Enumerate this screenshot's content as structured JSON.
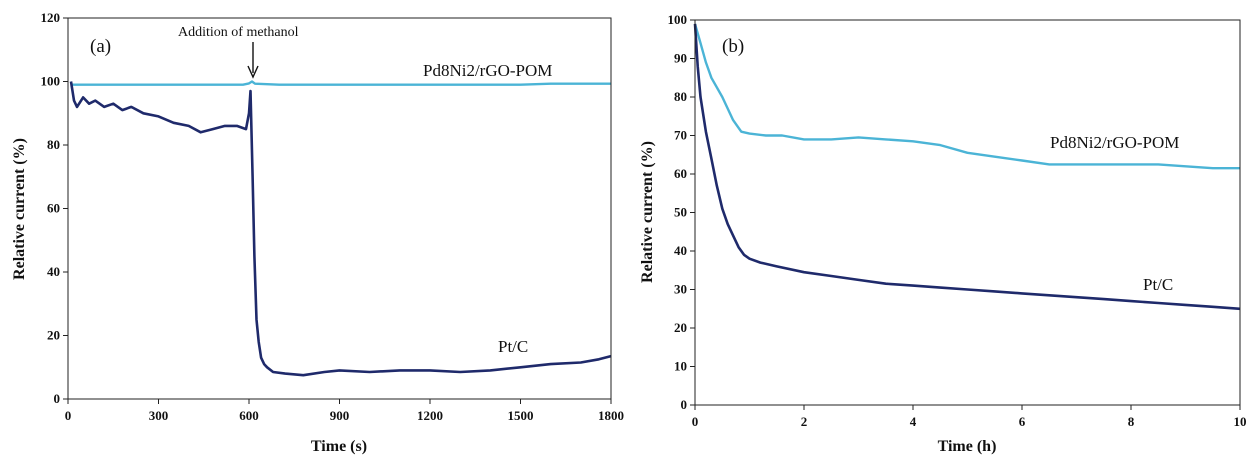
{
  "chart_data": [
    {
      "type": "line",
      "panel_label": "(a)",
      "xlabel": "Time (s)",
      "ylabel": "Relative current (%)",
      "xlim": [
        0,
        1800
      ],
      "ylim": [
        0,
        120
      ],
      "xticks": [
        0,
        300,
        600,
        900,
        1200,
        1500,
        1800
      ],
      "yticks": [
        0,
        20,
        40,
        60,
        80,
        100,
        120
      ],
      "grid": false,
      "annotation": {
        "text": "Addition of methanol",
        "x": 610,
        "arrow_to_y": 101
      },
      "series": [
        {
          "name": "Pd8Ni2/rGO-POM",
          "color": "#4bb4d6",
          "x": [
            10,
            100,
            200,
            300,
            400,
            500,
            580,
            600,
            610,
            620,
            700,
            800,
            900,
            1000,
            1100,
            1200,
            1300,
            1400,
            1500,
            1600,
            1700,
            1800
          ],
          "y": [
            99,
            99,
            99,
            99,
            99,
            99,
            99,
            99.4,
            100,
            99.3,
            99,
            99,
            99,
            99,
            99,
            99,
            99,
            99,
            99,
            99.3,
            99.3,
            99.3
          ]
        },
        {
          "name": "Pt/C",
          "color": "#1f2a6b",
          "x": [
            10,
            20,
            30,
            50,
            70,
            90,
            120,
            150,
            180,
            210,
            250,
            300,
            350,
            400,
            440,
            480,
            520,
            560,
            590,
            600,
            605,
            612,
            618,
            625,
            632,
            640,
            650,
            660,
            680,
            720,
            780,
            850,
            900,
            1000,
            1100,
            1200,
            1300,
            1400,
            1500,
            1600,
            1700,
            1760,
            1800
          ],
          "y": [
            100,
            94,
            92,
            95,
            93,
            94,
            92,
            93,
            91,
            92,
            90,
            89,
            87,
            86,
            84,
            85,
            86,
            86,
            85,
            90,
            97,
            70,
            45,
            25,
            18,
            13,
            11,
            10,
            8.5,
            8,
            7.5,
            8.5,
            9,
            8.5,
            9,
            9,
            8.5,
            9,
            10,
            11,
            11.5,
            12.5,
            13.5
          ]
        }
      ]
    },
    {
      "type": "line",
      "panel_label": "(b)",
      "xlabel": "Time (h)",
      "ylabel": "Relative  current (%)",
      "xlim": [
        0,
        10
      ],
      "ylim": [
        0,
        100
      ],
      "xticks": [
        0,
        2,
        4,
        6,
        8,
        10
      ],
      "yticks": [
        0,
        10,
        20,
        30,
        40,
        50,
        60,
        70,
        80,
        90,
        100
      ],
      "grid": false,
      "series": [
        {
          "name": "Pd8Ni2/rGO-POM",
          "color": "#4bb4d6",
          "x": [
            0,
            0.1,
            0.2,
            0.3,
            0.5,
            0.7,
            0.85,
            1.0,
            1.3,
            1.6,
            2.0,
            2.5,
            3.0,
            3.5,
            4.0,
            4.5,
            5.0,
            5.5,
            6.0,
            6.5,
            7.0,
            7.5,
            8.0,
            8.5,
            9.0,
            9.5,
            10.0
          ],
          "y": [
            99,
            94,
            89,
            85,
            80,
            74,
            71,
            70.5,
            70,
            70,
            69,
            69,
            69.5,
            69,
            68.5,
            67.5,
            65.5,
            64.5,
            63.5,
            62.5,
            62.5,
            62.5,
            62.5,
            62.5,
            62,
            61.5,
            61.5
          ]
        },
        {
          "name": "Pt/C",
          "color": "#1f2a6b",
          "x": [
            0,
            0.05,
            0.1,
            0.2,
            0.3,
            0.4,
            0.5,
            0.6,
            0.7,
            0.8,
            0.9,
            1.0,
            1.2,
            1.5,
            2.0,
            2.5,
            3.0,
            3.5,
            4.0,
            4.5,
            5.0,
            5.5,
            6.0,
            6.5,
            7.0,
            7.5,
            8.0,
            8.5,
            9.0,
            9.5,
            10.0
          ],
          "y": [
            99,
            88,
            80,
            71,
            64,
            57,
            51,
            47,
            44,
            41,
            39,
            38,
            37,
            36,
            34.5,
            33.5,
            32.5,
            31.5,
            31,
            30.5,
            30,
            29.5,
            29,
            28.5,
            28,
            27.5,
            27,
            26.5,
            26,
            25.5,
            25
          ]
        }
      ]
    }
  ]
}
